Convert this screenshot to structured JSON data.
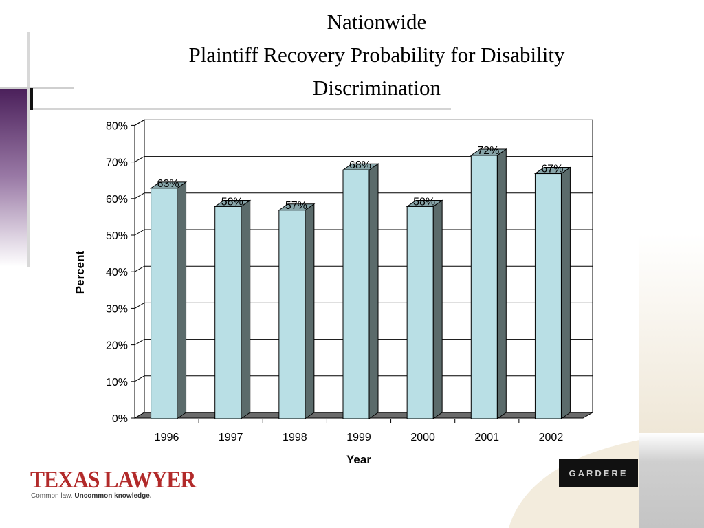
{
  "slide": {
    "title_lines": [
      "Nationwide",
      "Plaintiff Recovery Probability for Disability",
      "Discrimination"
    ]
  },
  "colors": {
    "bar_front": "#b9dfe5",
    "bar_side": "#5b6b6b",
    "bar_top": "#87a4a8",
    "floor": "#6b6b6b",
    "gridline": "#000000",
    "sidebar_purple": "#5a2a6a"
  },
  "chart_data": {
    "type": "bar",
    "title": "",
    "categories": [
      "1996",
      "1997",
      "1998",
      "1999",
      "2000",
      "2001",
      "2002"
    ],
    "values": [
      0.63,
      0.58,
      0.57,
      0.68,
      0.58,
      0.72,
      0.67
    ],
    "data_labels": [
      "63%",
      "58%",
      "57%",
      "68%",
      "58%",
      "72%",
      "67%"
    ],
    "xlabel": "Year",
    "ylabel": "Percent",
    "ylim": [
      0,
      0.8
    ],
    "yticks": [
      {
        "v": 0,
        "label": "0%"
      },
      {
        "v": 0.1,
        "label": "10%"
      },
      {
        "v": 0.2,
        "label": "20%"
      },
      {
        "v": 0.3,
        "label": "30%"
      },
      {
        "v": 0.4,
        "label": "40%"
      },
      {
        "v": 0.5,
        "label": "50%"
      },
      {
        "v": 0.6,
        "label": "60%"
      },
      {
        "v": 0.7,
        "label": "70%"
      },
      {
        "v": 0.8,
        "label": "80%"
      }
    ],
    "grid": true,
    "legend": "none"
  },
  "logos": {
    "texas_lawyer": {
      "name": "TEXAS LAWYER",
      "tag_part1": "Common law.",
      "tag_part2": "Uncommon knowledge."
    },
    "gardere": {
      "name": "GARDERE"
    }
  }
}
